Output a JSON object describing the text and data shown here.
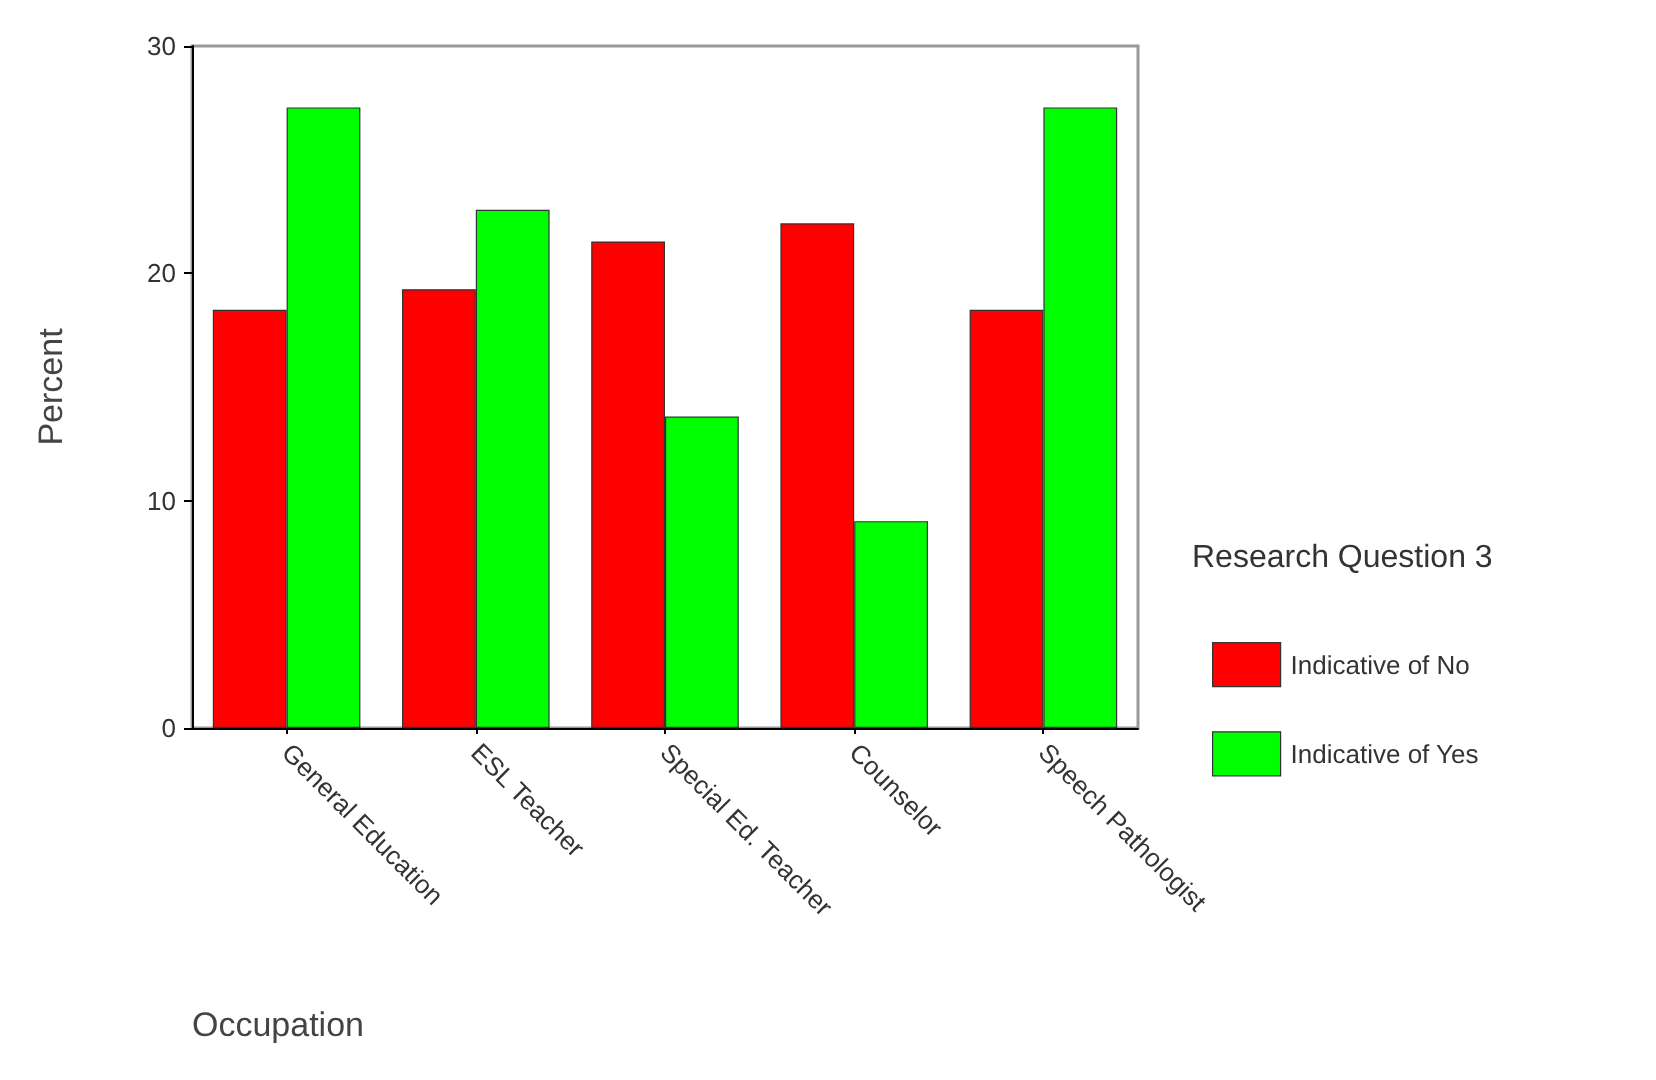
{
  "chart_data": {
    "type": "bar",
    "xlabel": "Occupation",
    "ylabel": "Percent",
    "legend_title": "Research Question 3",
    "categories": [
      "General Education",
      "ESL Teacher",
      "Special Ed. Teacher",
      "Counselor",
      "Speech Pathologist"
    ],
    "series": [
      {
        "name": "Indicative of No",
        "color": "#ff0000",
        "values": [
          18.4,
          19.3,
          21.4,
          22.2,
          18.4
        ]
      },
      {
        "name": "Indicative of Yes",
        "color": "#00ff00",
        "values": [
          27.3,
          22.8,
          13.7,
          9.1,
          27.3
        ]
      }
    ],
    "ylim": [
      0,
      30
    ],
    "yticks": [
      0,
      10,
      20,
      30
    ],
    "grid": false,
    "legend": "right"
  }
}
